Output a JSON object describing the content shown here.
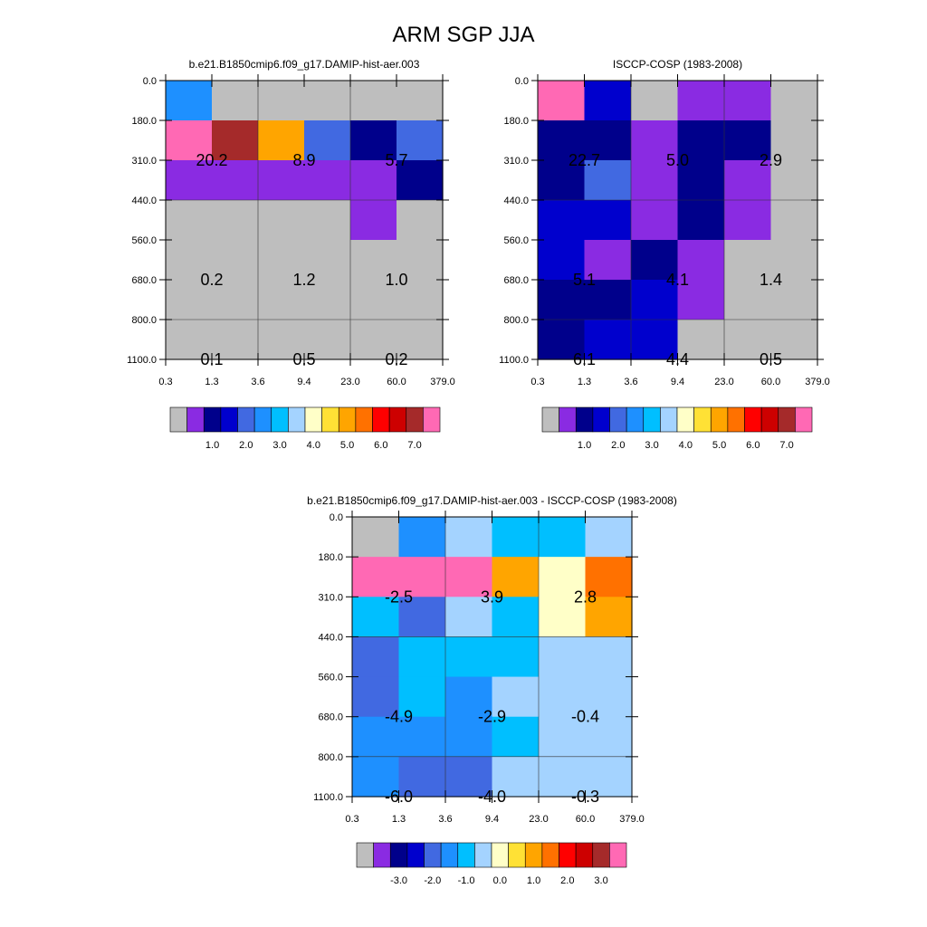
{
  "figure": {
    "title": "ARM SGP JJA"
  },
  "palette_main": [
    "#bebebe",
    "#8a2be2",
    "#00008b",
    "#0000cd",
    "#4169e1",
    "#1e90ff",
    "#00bfff",
    "#a4d3ff",
    "#ffffc8",
    "#ffe135",
    "#ffa500",
    "#ff7100",
    "#ff0000",
    "#cd0000",
    "#a52a2a",
    "#ff69b4"
  ],
  "chart_data": [
    {
      "type": "heatmap",
      "title": "b.e21.B1850cmip6.f09_g17.DAMIP-hist-aer.003",
      "x_ticks": [
        "0.3",
        "1.3",
        "3.6",
        "9.4",
        "23.0",
        "60.0",
        "379.0"
      ],
      "y_ticks": [
        "0.0",
        "180.0",
        "310.0",
        "440.0",
        "560.0",
        "680.0",
        "800.0",
        "1100.0"
      ],
      "cells": [
        [
          5,
          0,
          0,
          0,
          0,
          0
        ],
        [
          15,
          14,
          10,
          4,
          2,
          4
        ],
        [
          1,
          1,
          1,
          1,
          1,
          2
        ],
        [
          0,
          0,
          0,
          0,
          1,
          0
        ],
        [
          0,
          0,
          0,
          0,
          0,
          0
        ],
        [
          0,
          0,
          0,
          0,
          0,
          0
        ],
        [
          0,
          0,
          0,
          0,
          0,
          0
        ]
      ],
      "labels": [
        {
          "text": "20.2",
          "x": 1,
          "y": 2
        },
        {
          "text": "8.9",
          "x": 3,
          "y": 2
        },
        {
          "text": "5.7",
          "x": 5,
          "y": 2
        },
        {
          "text": "0.2",
          "x": 1,
          "y": 5
        },
        {
          "text": "1.2",
          "x": 3,
          "y": 5
        },
        {
          "text": "1.0",
          "x": 5,
          "y": 5
        },
        {
          "text": "0.1",
          "x": 1,
          "y": 7
        },
        {
          "text": "0.5",
          "x": 3,
          "y": 7
        },
        {
          "text": "0.2",
          "x": 5,
          "y": 7
        }
      ],
      "colorbar_labels": [
        "1.0",
        "2.0",
        "3.0",
        "4.0",
        "5.0",
        "6.0",
        "7.0"
      ]
    },
    {
      "type": "heatmap",
      "title": "ISCCP-COSP (1983-2008)",
      "x_ticks": [
        "0.3",
        "1.3",
        "3.6",
        "9.4",
        "23.0",
        "60.0",
        "379.0"
      ],
      "y_ticks": [
        "0.0",
        "180.0",
        "310.0",
        "440.0",
        "560.0",
        "680.0",
        "800.0",
        "1100.0"
      ],
      "cells": [
        [
          15,
          3,
          0,
          1,
          1,
          0
        ],
        [
          2,
          2,
          1,
          2,
          2,
          0
        ],
        [
          2,
          4,
          1,
          2,
          1,
          0
        ],
        [
          3,
          3,
          1,
          2,
          1,
          0
        ],
        [
          3,
          1,
          2,
          1,
          0,
          0
        ],
        [
          2,
          2,
          3,
          1,
          0,
          0
        ],
        [
          2,
          3,
          3,
          0,
          0,
          0
        ]
      ],
      "labels": [
        {
          "text": "22.7",
          "x": 1,
          "y": 2
        },
        {
          "text": "5.0",
          "x": 3,
          "y": 2
        },
        {
          "text": "2.9",
          "x": 5,
          "y": 2
        },
        {
          "text": "5.1",
          "x": 1,
          "y": 5
        },
        {
          "text": "4.1",
          "x": 3,
          "y": 5
        },
        {
          "text": "1.4",
          "x": 5,
          "y": 5
        },
        {
          "text": "6.1",
          "x": 1,
          "y": 7
        },
        {
          "text": "4.4",
          "x": 3,
          "y": 7
        },
        {
          "text": "0.5",
          "x": 5,
          "y": 7
        }
      ],
      "colorbar_labels": [
        "1.0",
        "2.0",
        "3.0",
        "4.0",
        "5.0",
        "6.0",
        "7.0"
      ]
    },
    {
      "type": "heatmap",
      "title": "b.e21.B1850cmip6.f09_g17.DAMIP-hist-aer.003 - ISCCP-COSP (1983-2008)",
      "x_ticks": [
        "0.3",
        "1.3",
        "3.6",
        "9.4",
        "23.0",
        "60.0",
        "379.0"
      ],
      "y_ticks": [
        "0.0",
        "180.0",
        "310.0",
        "440.0",
        "560.0",
        "680.0",
        "800.0",
        "1100.0"
      ],
      "cells": [
        [
          0,
          5,
          7,
          6,
          6,
          7
        ],
        [
          15,
          15,
          15,
          10,
          8,
          11
        ],
        [
          6,
          4,
          7,
          6,
          8,
          10
        ],
        [
          4,
          6,
          6,
          6,
          7,
          7
        ],
        [
          4,
          6,
          5,
          7,
          7,
          7
        ],
        [
          5,
          5,
          5,
          6,
          7,
          7
        ],
        [
          5,
          4,
          4,
          7,
          7,
          7
        ]
      ],
      "labels": [
        {
          "text": "-2.5",
          "x": 1,
          "y": 2
        },
        {
          "text": "3.9",
          "x": 3,
          "y": 2
        },
        {
          "text": "2.8",
          "x": 5,
          "y": 2
        },
        {
          "text": "-4.9",
          "x": 1,
          "y": 5
        },
        {
          "text": "-2.9",
          "x": 3,
          "y": 5
        },
        {
          "text": "-0.4",
          "x": 5,
          "y": 5
        },
        {
          "text": "-6.0",
          "x": 1,
          "y": 7
        },
        {
          "text": "-4.0",
          "x": 3,
          "y": 7
        },
        {
          "text": "-0.3",
          "x": 5,
          "y": 7
        }
      ],
      "colorbar_labels": [
        "-3.0",
        "-2.0",
        "-1.0",
        "0.0",
        "1.0",
        "2.0",
        "3.0"
      ]
    }
  ]
}
